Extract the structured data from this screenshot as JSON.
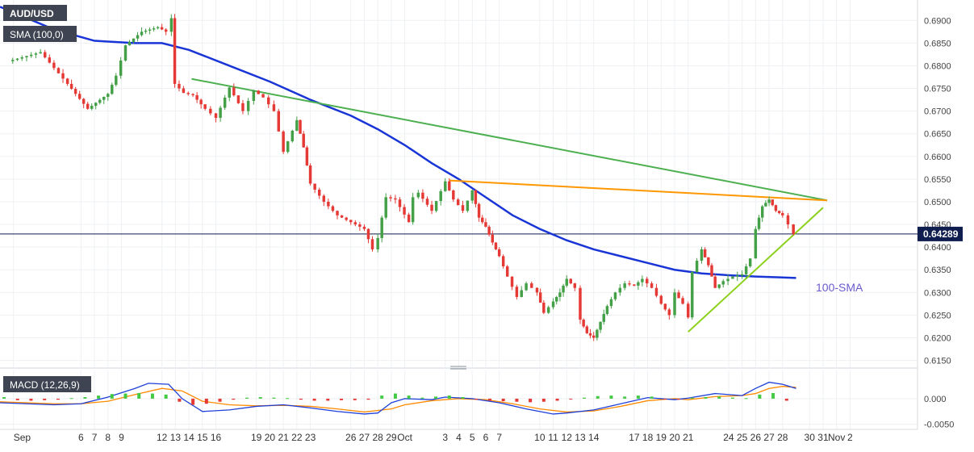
{
  "chart_data": {
    "type": "candlestick",
    "symbol": "AUD/USD",
    "price_panel": {
      "indicator_label": "SMA (100,0)",
      "yticks": [
        0.615,
        0.62,
        0.625,
        0.63,
        0.635,
        0.64,
        0.645,
        0.65,
        0.655,
        0.66,
        0.665,
        0.67,
        0.675,
        0.68,
        0.685,
        0.69
      ],
      "ytick_labels": [
        "0.6150",
        "0.6200",
        "0.6250",
        "0.6300",
        "0.6350",
        "0.6400",
        "0.6450",
        "0.6500",
        "0.6550",
        "0.6600",
        "0.6650",
        "0.6700",
        "0.6750",
        "0.6800",
        "0.6850",
        "0.6900"
      ],
      "ylim": [
        0.6135,
        0.6945
      ],
      "current_price": 0.64289,
      "current_price_label": "0.64289",
      "sma_annotation": "100-SMA",
      "colors": {
        "bull": "#43a047",
        "bear": "#e53935",
        "sma": "#1a35d6",
        "resistance_main": "#4caf50",
        "resistance_short": "#ff9800",
        "support": "#8bd11a",
        "price_tag": "#0f1e4e"
      }
    },
    "x_axis": {
      "labels": [
        "Sep",
        "6",
        "7",
        "8",
        "9",
        "12",
        "13",
        "14",
        "15",
        "16",
        "19",
        "20",
        "21",
        "22",
        "23",
        "26",
        "27",
        "28",
        "29",
        "Oct",
        "3",
        "4",
        "5",
        "6",
        "7",
        "10",
        "11",
        "12",
        "13",
        "14",
        "17",
        "18",
        "19",
        "20",
        "21",
        "24",
        "25",
        "26",
        "27",
        "28",
        "30",
        "31",
        "Nov",
        "2"
      ],
      "label_days": [
        1,
        6,
        7,
        8,
        9,
        12,
        13,
        14,
        15,
        16,
        19,
        20,
        21,
        22,
        23,
        26,
        27,
        28,
        29,
        30,
        33,
        34,
        35,
        36,
        37,
        40,
        41,
        42,
        43,
        44,
        47,
        48,
        49,
        50,
        51,
        54,
        55,
        56,
        57,
        58,
        60,
        61,
        62,
        63
      ]
    },
    "close_trace": [
      [
        0.6,
        0.681
      ],
      [
        3,
        0.683
      ],
      [
        5,
        0.676
      ],
      [
        6.5,
        0.6705
      ],
      [
        8,
        0.6738
      ],
      [
        8.6,
        0.6778
      ],
      [
        9.3,
        0.6845
      ],
      [
        10.5,
        0.6875
      ],
      [
        11.7,
        0.6885
      ],
      [
        12.3,
        0.6875
      ],
      [
        12.7,
        0.6905
      ],
      [
        12.95,
        0.676
      ],
      [
        13.6,
        0.674
      ],
      [
        14.3,
        0.6735
      ],
      [
        15.2,
        0.6705
      ],
      [
        16,
        0.6685
      ],
      [
        17,
        0.6752
      ],
      [
        18,
        0.67
      ],
      [
        18.8,
        0.6745
      ],
      [
        19.5,
        0.673
      ],
      [
        20.3,
        0.67
      ],
      [
        21,
        0.661
      ],
      [
        22,
        0.668
      ],
      [
        22.5,
        0.662
      ],
      [
        23,
        0.654
      ],
      [
        24,
        0.65
      ],
      [
        25,
        0.647
      ],
      [
        26,
        0.6455
      ],
      [
        27,
        0.644
      ],
      [
        27.6,
        0.6395
      ],
      [
        28,
        0.642
      ],
      [
        28.6,
        0.651
      ],
      [
        29.3,
        0.6505
      ],
      [
        30.3,
        0.6455
      ],
      [
        30.6,
        0.651
      ],
      [
        31,
        0.652
      ],
      [
        32,
        0.648
      ],
      [
        33,
        0.6545
      ],
      [
        33.6,
        0.6505
      ],
      [
        34.3,
        0.648
      ],
      [
        35,
        0.6525
      ],
      [
        35.5,
        0.6465
      ],
      [
        36,
        0.6445
      ],
      [
        36.5,
        0.641
      ],
      [
        37,
        0.638
      ],
      [
        37.6,
        0.6335
      ],
      [
        38.3,
        0.629
      ],
      [
        39,
        0.632
      ],
      [
        39.8,
        0.63
      ],
      [
        40.3,
        0.6255
      ],
      [
        41,
        0.628
      ],
      [
        41.5,
        0.63
      ],
      [
        42,
        0.633
      ],
      [
        42.6,
        0.631
      ],
      [
        43,
        0.624
      ],
      [
        43.5,
        0.621
      ],
      [
        44,
        0.62
      ],
      [
        44.5,
        0.6235
      ],
      [
        45,
        0.627
      ],
      [
        45.6,
        0.63
      ],
      [
        46.3,
        0.632
      ],
      [
        47,
        0.6315
      ],
      [
        47.6,
        0.633
      ],
      [
        48.3,
        0.631
      ],
      [
        49,
        0.6275
      ],
      [
        49.6,
        0.625
      ],
      [
        50,
        0.63
      ],
      [
        50.6,
        0.6275
      ],
      [
        51,
        0.6245
      ],
      [
        51.3,
        0.6345
      ],
      [
        52,
        0.6395
      ],
      [
        52.5,
        0.636
      ],
      [
        53,
        0.631
      ],
      [
        53.6,
        0.6325
      ],
      [
        54.3,
        0.6335
      ],
      [
        55,
        0.634
      ],
      [
        55.6,
        0.6375
      ],
      [
        56,
        0.644
      ],
      [
        56.5,
        0.649
      ],
      [
        57,
        0.6505
      ],
      [
        57.5,
        0.648
      ],
      [
        58,
        0.647
      ],
      [
        58.4,
        0.645
      ],
      [
        58.8,
        0.6429
      ]
    ],
    "sma_100": [
      [
        0,
        0.693
      ],
      [
        4,
        0.688
      ],
      [
        7,
        0.6855
      ],
      [
        10,
        0.685
      ],
      [
        12,
        0.685
      ],
      [
        14,
        0.6835
      ],
      [
        17,
        0.68
      ],
      [
        20,
        0.6765
      ],
      [
        23,
        0.6725
      ],
      [
        26,
        0.669
      ],
      [
        28,
        0.666
      ],
      [
        30,
        0.6625
      ],
      [
        32,
        0.6585
      ],
      [
        34,
        0.655
      ],
      [
        36,
        0.651
      ],
      [
        38,
        0.647
      ],
      [
        40,
        0.644
      ],
      [
        42,
        0.6415
      ],
      [
        44,
        0.6395
      ],
      [
        46,
        0.638
      ],
      [
        48,
        0.6365
      ],
      [
        50,
        0.635
      ],
      [
        52,
        0.6342
      ],
      [
        54,
        0.6338
      ],
      [
        56,
        0.6335
      ],
      [
        58,
        0.6333
      ],
      [
        59,
        0.6332
      ]
    ],
    "trendlines": [
      {
        "name": "descending-resistance",
        "from": [
          14.2,
          0.6771
        ],
        "to": [
          61.3,
          0.6503
        ]
      },
      {
        "name": "flat-resistance",
        "from": [
          33.3,
          0.6547
        ],
        "to": [
          61.3,
          0.6503
        ]
      },
      {
        "name": "rising-support",
        "from": [
          51.0,
          0.6213
        ],
        "to": [
          61.0,
          0.6487
        ]
      }
    ],
    "macd_panel": {
      "label": "MACD (12,26,9)",
      "yticks": [
        0.0,
        -0.005
      ],
      "ytick_labels": [
        "0.000",
        "-0.0050"
      ],
      "ylim": [
        -0.006,
        0.0055
      ],
      "colors": {
        "macd": "#1e40d8",
        "signal": "#ff8a00",
        "hist_pos": "#43c943",
        "hist_neg": "#e53935"
      },
      "macd": [
        [
          0,
          -0.0008
        ],
        [
          2,
          -0.001
        ],
        [
          4,
          -0.0012
        ],
        [
          6,
          -0.001
        ],
        [
          8,
          0.0003
        ],
        [
          10,
          0.002
        ],
        [
          11,
          0.003
        ],
        [
          12.5,
          0.0028
        ],
        [
          13.5,
          0.0
        ],
        [
          15,
          -0.0025
        ],
        [
          17,
          -0.0022
        ],
        [
          19,
          -0.0015
        ],
        [
          21,
          -0.0012
        ],
        [
          23,
          -0.0018
        ],
        [
          25,
          -0.0025
        ],
        [
          27,
          -0.003
        ],
        [
          28,
          -0.0028
        ],
        [
          29,
          -0.0008
        ],
        [
          30,
          0.0
        ],
        [
          32,
          -0.0002
        ],
        [
          33,
          0.0003
        ],
        [
          35,
          0.0
        ],
        [
          37,
          -0.0008
        ],
        [
          39,
          -0.002
        ],
        [
          41,
          -0.003
        ],
        [
          42,
          -0.0028
        ],
        [
          44,
          -0.0022
        ],
        [
          46,
          -0.001
        ],
        [
          48,
          0.0002
        ],
        [
          50,
          -0.0002
        ],
        [
          51,
          0.0001
        ],
        [
          53,
          0.001
        ],
        [
          55,
          0.0006
        ],
        [
          56,
          0.002
        ],
        [
          57,
          0.0032
        ],
        [
          58,
          0.0028
        ],
        [
          59,
          0.002
        ]
      ],
      "signal": [
        [
          0,
          -0.0006
        ],
        [
          2,
          -0.0008
        ],
        [
          4,
          -0.001
        ],
        [
          6,
          -0.001
        ],
        [
          8,
          -0.0005
        ],
        [
          10,
          0.0008
        ],
        [
          12,
          0.002
        ],
        [
          13.5,
          0.0015
        ],
        [
          15,
          -0.0005
        ],
        [
          17,
          -0.0012
        ],
        [
          19,
          -0.0014
        ],
        [
          21,
          -0.0013
        ],
        [
          23,
          -0.0015
        ],
        [
          25,
          -0.002
        ],
        [
          27,
          -0.0026
        ],
        [
          29,
          -0.002
        ],
        [
          30,
          -0.0012
        ],
        [
          32,
          -0.0004
        ],
        [
          34,
          0.0
        ],
        [
          36,
          -0.0002
        ],
        [
          38,
          -0.001
        ],
        [
          40,
          -0.002
        ],
        [
          42,
          -0.0026
        ],
        [
          44,
          -0.0024
        ],
        [
          46,
          -0.0015
        ],
        [
          48,
          -0.0004
        ],
        [
          50,
          0.0
        ],
        [
          51,
          -0.0002
        ],
        [
          53,
          0.0004
        ],
        [
          55,
          0.0006
        ],
        [
          56,
          0.001
        ],
        [
          57,
          0.002
        ],
        [
          58,
          0.0024
        ],
        [
          59,
          0.0022
        ]
      ],
      "histogram": [
        [
          0.3,
          0.0003
        ],
        [
          1.3,
          -0.0003
        ],
        [
          2.3,
          -0.0004
        ],
        [
          3.3,
          -0.0003
        ],
        [
          4.3,
          -0.0002
        ],
        [
          5.3,
          0.0001
        ],
        [
          6.3,
          0.0003
        ],
        [
          7.3,
          0.0006
        ],
        [
          8.3,
          0.0009
        ],
        [
          9.3,
          0.001
        ],
        [
          10.3,
          0.0011
        ],
        [
          11.3,
          0.001
        ],
        [
          12.3,
          0.0008
        ],
        [
          13.3,
          -0.0006
        ],
        [
          14.3,
          -0.0012
        ],
        [
          15.3,
          -0.001
        ],
        [
          16.3,
          -0.0006
        ],
        [
          17.3,
          -0.0002
        ],
        [
          18.3,
          0.0002
        ],
        [
          19.3,
          0.0003
        ],
        [
          20.3,
          0.0002
        ],
        [
          21.3,
          0.0001
        ],
        [
          22.3,
          -0.0002
        ],
        [
          23.3,
          -0.0004
        ],
        [
          24.3,
          -0.0004
        ],
        [
          25.3,
          -0.0003
        ],
        [
          26.3,
          -0.0003
        ],
        [
          27.3,
          -0.0002
        ],
        [
          28.3,
          0.0006
        ],
        [
          29.3,
          0.001
        ],
        [
          30.3,
          0.0006
        ],
        [
          31.3,
          0.0002
        ],
        [
          32.3,
          0.0004
        ],
        [
          33.3,
          0.0006
        ],
        [
          34.3,
          0.0003
        ],
        [
          35.3,
          -0.0002
        ],
        [
          36.3,
          -0.0004
        ],
        [
          37.3,
          -0.0005
        ],
        [
          38.3,
          -0.0006
        ],
        [
          39.3,
          -0.0007
        ],
        [
          40.3,
          -0.0006
        ],
        [
          41.3,
          -0.0004
        ],
        [
          42.3,
          -0.0001
        ],
        [
          43.3,
          0.0002
        ],
        [
          44.3,
          0.0005
        ],
        [
          45.3,
          0.0006
        ],
        [
          46.3,
          0.0004
        ],
        [
          47.3,
          0.0006
        ],
        [
          48.3,
          0.0004
        ],
        [
          49.3,
          -0.0001
        ],
        [
          50.3,
          -0.0002
        ],
        [
          51.3,
          0.0002
        ],
        [
          52.3,
          0.0003
        ],
        [
          53.3,
          0.0004
        ],
        [
          54.3,
          0.0002
        ],
        [
          55.3,
          0.0001
        ],
        [
          56.3,
          0.0008
        ],
        [
          57.3,
          0.0011
        ],
        [
          58.3,
          -0.0004
        ]
      ]
    },
    "xlim": [
      0,
      68
    ],
    "grid": true
  }
}
